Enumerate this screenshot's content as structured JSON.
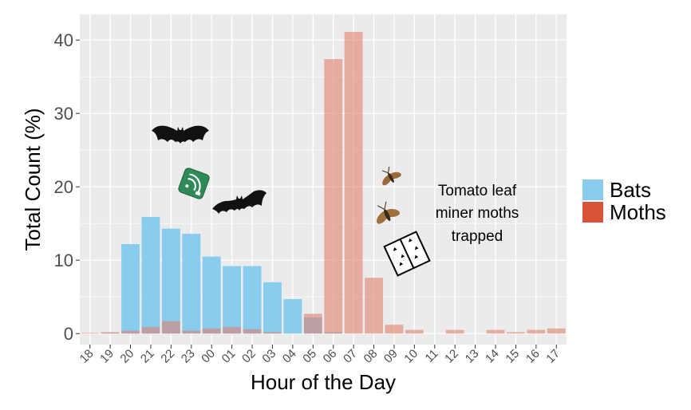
{
  "chart_data": {
    "type": "bar",
    "xlabel": "Hour of the Day",
    "ylabel": "Total Count (%)",
    "ylim": [
      -1.5,
      43.5
    ],
    "yticks": [
      0,
      10,
      20,
      30,
      40
    ],
    "grid": true,
    "legend_position": "right",
    "categories": [
      "18",
      "19",
      "20",
      "21",
      "22",
      "23",
      "00",
      "01",
      "02",
      "03",
      "04",
      "05",
      "06",
      "07",
      "08",
      "09",
      "10",
      "11",
      "12",
      "13",
      "14",
      "15",
      "16",
      "17"
    ],
    "series": [
      {
        "name": "Bats",
        "color": "#88CCEE",
        "values": [
          0.0,
          0.1,
          12.2,
          15.9,
          14.3,
          13.6,
          10.5,
          9.2,
          9.2,
          7.0,
          4.7,
          2.2,
          0.2,
          0.0,
          0.0,
          0.0,
          0.0,
          0.0,
          0.0,
          0.0,
          0.0,
          0.0,
          0.0,
          0.0
        ]
      },
      {
        "name": "Moths",
        "color": "#E08070",
        "values": [
          0.1,
          0.2,
          0.4,
          0.9,
          1.7,
          0.4,
          0.7,
          0.9,
          0.6,
          0.2,
          0.0,
          2.7,
          37.4,
          41.1,
          7.6,
          1.2,
          0.5,
          0.0,
          0.5,
          0.0,
          0.5,
          0.2,
          0.5,
          0.7
        ]
      }
    ],
    "annotations": [
      {
        "text_lines": [
          "Tomato leaf",
          "miner moths",
          "trapped"
        ]
      }
    ],
    "icons": [
      "bat-icon",
      "bat-icon",
      "acoustic-detector-icon",
      "moth-icon",
      "moth-icon",
      "sticky-trap-icon"
    ]
  }
}
